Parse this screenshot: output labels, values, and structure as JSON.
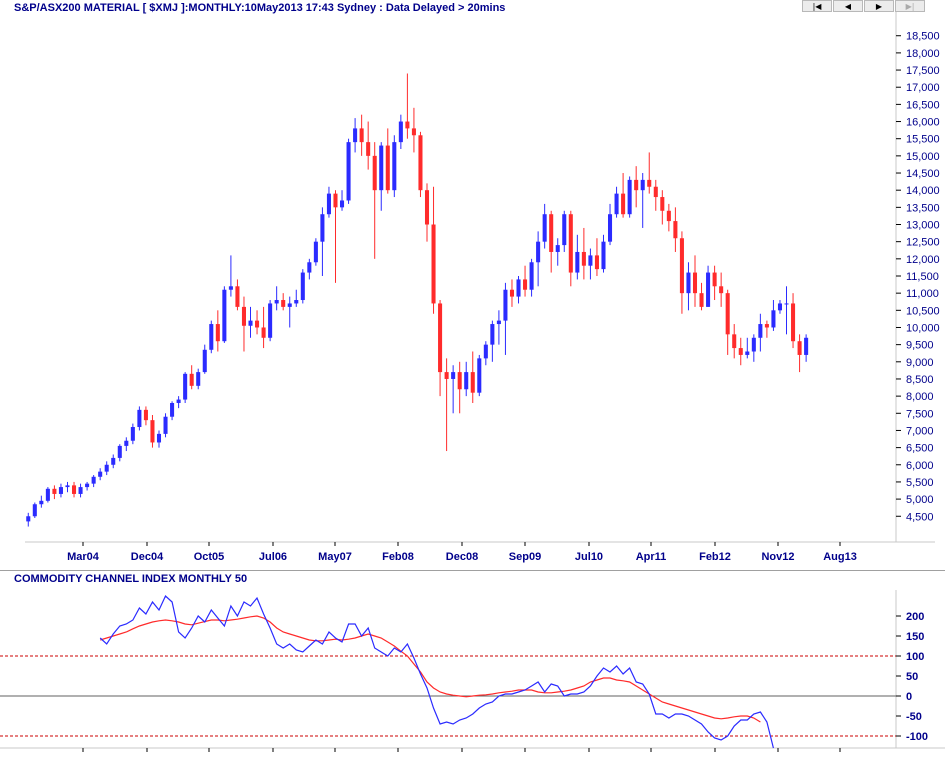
{
  "header": {
    "title": "S&P/ASX200 MATERIAL [ $XMJ ]:MONTHLY:10May2013 17:43 Sydney : Data Delayed > 20mins"
  },
  "nav": [
    {
      "name": "first-button",
      "icon": "skip-first-icon",
      "glyph": "|◀"
    },
    {
      "name": "previous-button",
      "icon": "step-back-icon",
      "glyph": "◀"
    },
    {
      "name": "next-button",
      "icon": "step-forward-icon",
      "glyph": "▶"
    },
    {
      "name": "last-button",
      "icon": "skip-last-icon",
      "glyph": "▶|"
    }
  ],
  "indicator": {
    "title": "COMMODITY CHANNEL INDEX MONTHLY 50"
  },
  "colors": {
    "up": "#2b2bff",
    "down": "#ff2b2b",
    "cci": "#2b2bff",
    "signal": "#ff2b2b",
    "text": "#00008b"
  },
  "chart_data": [
    {
      "type": "candlestick",
      "title": "S&P/ASX200 MATERIAL [ $XMJ ]:MONTHLY:10May2013 17:43 Sydney : Data Delayed > 20mins",
      "x_tick_labels": [
        "Mar04",
        "Dec04",
        "Oct05",
        "Jul06",
        "May07",
        "Feb08",
        "Dec08",
        "Sep09",
        "Jul10",
        "Apr11",
        "Feb12",
        "Nov12",
        "Aug13"
      ],
      "y_ticks": [
        4500,
        5000,
        5500,
        6000,
        6500,
        7000,
        7500,
        8000,
        8500,
        9000,
        9500,
        10000,
        10500,
        11000,
        11500,
        12000,
        12500,
        13000,
        13500,
        14000,
        14500,
        15000,
        15500,
        16000,
        16500,
        17000,
        17500,
        18000,
        18500
      ],
      "y_tick_labels": [
        "4,500",
        "5,000",
        "5,500",
        "6,000",
        "6,500",
        "7,000",
        "7,500",
        "8,000",
        "8,500",
        "9,000",
        "9,500",
        "10,000",
        "10,500",
        "11,000",
        "11,500",
        "12,000",
        "12,500",
        "13,000",
        "13,500",
        "14,000",
        "14,500",
        "15,000",
        "15,500",
        "16,000",
        "16,500",
        "17,000",
        "17,500",
        "18,000",
        "18,500"
      ],
      "ylim": [
        3750,
        18900
      ],
      "xlim": [
        0,
        123
      ],
      "candles": [
        [
          4350,
          4600,
          4200,
          4500
        ],
        [
          4500,
          4900,
          4450,
          4850
        ],
        [
          4850,
          5100,
          4750,
          4950
        ],
        [
          4950,
          5350,
          4900,
          5300
        ],
        [
          5300,
          5400,
          5000,
          5150
        ],
        [
          5150,
          5450,
          5050,
          5350
        ],
        [
          5350,
          5500,
          5200,
          5400
        ],
        [
          5400,
          5500,
          5050,
          5150
        ],
        [
          5150,
          5450,
          5050,
          5350
        ],
        [
          5350,
          5500,
          5250,
          5450
        ],
        [
          5450,
          5700,
          5350,
          5650
        ],
        [
          5650,
          5900,
          5550,
          5800
        ],
        [
          5800,
          6100,
          5700,
          6000
        ],
        [
          6000,
          6300,
          5900,
          6200
        ],
        [
          6200,
          6600,
          6100,
          6550
        ],
        [
          6550,
          6800,
          6400,
          6700
        ],
        [
          6700,
          7200,
          6600,
          7100
        ],
        [
          7100,
          7700,
          7000,
          7600
        ],
        [
          7600,
          7700,
          7150,
          7300
        ],
        [
          7300,
          7450,
          6500,
          6650
        ],
        [
          6650,
          7000,
          6500,
          6900
        ],
        [
          6900,
          7500,
          6800,
          7400
        ],
        [
          7400,
          7850,
          7300,
          7800
        ],
        [
          7800,
          8000,
          7650,
          7900
        ],
        [
          7900,
          8700,
          7800,
          8650
        ],
        [
          8650,
          8900,
          8200,
          8300
        ],
        [
          8300,
          8800,
          8200,
          8700
        ],
        [
          8700,
          9500,
          8650,
          9350
        ],
        [
          9350,
          10200,
          9250,
          10100
        ],
        [
          10100,
          10500,
          9300,
          9600
        ],
        [
          9600,
          11200,
          9550,
          11100
        ],
        [
          11100,
          12100,
          10900,
          11200
        ],
        [
          11200,
          11400,
          10500,
          10600
        ],
        [
          10600,
          10900,
          9300,
          10050
        ],
        [
          10050,
          10600,
          9700,
          10200
        ],
        [
          10200,
          10500,
          9800,
          10000
        ],
        [
          10000,
          10600,
          9400,
          9700
        ],
        [
          9700,
          10800,
          9600,
          10700
        ],
        [
          10700,
          11200,
          10500,
          10800
        ],
        [
          10800,
          11000,
          10500,
          10600
        ],
        [
          10600,
          10900,
          10000,
          10700
        ],
        [
          10700,
          11100,
          10600,
          10800
        ],
        [
          10800,
          11700,
          10700,
          11600
        ],
        [
          11600,
          12000,
          11400,
          11900
        ],
        [
          11900,
          12600,
          11800,
          12500
        ],
        [
          12500,
          13500,
          11500,
          13300
        ],
        [
          13300,
          14100,
          13200,
          13900
        ],
        [
          13900,
          14000,
          11300,
          13500
        ],
        [
          13500,
          14000,
          13400,
          13700
        ],
        [
          13700,
          15500,
          13600,
          15400
        ],
        [
          15400,
          16100,
          15100,
          15800
        ],
        [
          15800,
          16200,
          15000,
          15400
        ],
        [
          15400,
          16000,
          14600,
          15000
        ],
        [
          15000,
          15400,
          12000,
          14000
        ],
        [
          14000,
          15400,
          13400,
          15300
        ],
        [
          15300,
          15800,
          13900,
          14000
        ],
        [
          14000,
          15600,
          13800,
          15400
        ],
        [
          15400,
          16200,
          15200,
          16000
        ],
        [
          16000,
          17400,
          15500,
          15800
        ],
        [
          15800,
          16400,
          15100,
          15600
        ],
        [
          15600,
          15700,
          13800,
          14000
        ],
        [
          14000,
          14200,
          12500,
          13000
        ],
        [
          13000,
          14100,
          10400,
          10700
        ],
        [
          10700,
          10800,
          8000,
          8700
        ],
        [
          8700,
          9100,
          6400,
          8500
        ],
        [
          8500,
          8900,
          7500,
          8700
        ],
        [
          8700,
          9000,
          7500,
          8200
        ],
        [
          8200,
          9000,
          8000,
          8700
        ],
        [
          8700,
          9300,
          7800,
          8100
        ],
        [
          8100,
          9200,
          8000,
          9100
        ],
        [
          9100,
          9600,
          8900,
          9500
        ],
        [
          9500,
          10200,
          9000,
          10100
        ],
        [
          10100,
          10500,
          9500,
          10200
        ],
        [
          10200,
          11300,
          9200,
          11100
        ],
        [
          11100,
          11400,
          10600,
          10900
        ],
        [
          10900,
          11500,
          10700,
          11400
        ],
        [
          11400,
          11800,
          10900,
          11100
        ],
        [
          11100,
          12000,
          10900,
          11900
        ],
        [
          11900,
          12800,
          11200,
          12500
        ],
        [
          12500,
          13600,
          12300,
          13300
        ],
        [
          13300,
          13400,
          11600,
          12200
        ],
        [
          12200,
          12600,
          11800,
          12400
        ],
        [
          12400,
          13400,
          12200,
          13300
        ],
        [
          13300,
          13400,
          11200,
          11600
        ],
        [
          11600,
          12700,
          11400,
          12200
        ],
        [
          12200,
          12900,
          11400,
          11800
        ],
        [
          11800,
          12300,
          11400,
          12100
        ],
        [
          12100,
          12600,
          11500,
          11700
        ],
        [
          11700,
          12700,
          11600,
          12500
        ],
        [
          12500,
          13600,
          12400,
          13300
        ],
        [
          13300,
          14100,
          13200,
          13900
        ],
        [
          13900,
          14500,
          13200,
          13300
        ],
        [
          13300,
          14400,
          13200,
          14300
        ],
        [
          14300,
          14700,
          13500,
          14000
        ],
        [
          14000,
          14500,
          12900,
          14300
        ],
        [
          14300,
          15100,
          13900,
          14100
        ],
        [
          14100,
          14300,
          13400,
          13800
        ],
        [
          13800,
          14000,
          13000,
          13400
        ],
        [
          13400,
          13600,
          12800,
          13100
        ],
        [
          13100,
          13500,
          12200,
          12600
        ],
        [
          12600,
          12800,
          10400,
          11000
        ],
        [
          11000,
          11900,
          10500,
          11600
        ],
        [
          11600,
          12100,
          10600,
          11000
        ],
        [
          11000,
          11300,
          10500,
          10600
        ],
        [
          10600,
          11800,
          10600,
          11600
        ],
        [
          11600,
          11800,
          10800,
          11200
        ],
        [
          11200,
          11600,
          10600,
          11000
        ],
        [
          11000,
          11100,
          9200,
          9800
        ],
        [
          9800,
          10100,
          9100,
          9400
        ],
        [
          9400,
          9700,
          8900,
          9200
        ],
        [
          9200,
          9700,
          9100,
          9300
        ],
        [
          9300,
          9800,
          9000,
          9700
        ],
        [
          9700,
          10400,
          9300,
          10100
        ],
        [
          10100,
          10200,
          9700,
          10000
        ],
        [
          10000,
          10800,
          9900,
          10500
        ],
        [
          10500,
          10800,
          10400,
          10700
        ],
        [
          10700,
          11200,
          9800,
          10700
        ],
        [
          10700,
          11000,
          9400,
          9600
        ],
        [
          9600,
          9800,
          8700,
          9200
        ],
        [
          9200,
          9800,
          9000,
          9700
        ]
      ]
    },
    {
      "type": "line",
      "title": "COMMODITY CHANNEL INDEX MONTHLY 50",
      "y_ticks": [
        -100,
        -50,
        0,
        50,
        100,
        150,
        200
      ],
      "y_tick_labels": [
        "-100",
        "-50",
        "0",
        "50",
        "100",
        "150",
        "200"
      ],
      "ylim": [
        -130,
        240
      ],
      "reference_lines": [
        100,
        0,
        -100
      ],
      "xlim": [
        0,
        123
      ],
      "x_start": 11,
      "series": [
        {
          "values": [
            145,
            130,
            155,
            175,
            180,
            190,
            220,
            205,
            235,
            215,
            250,
            235,
            160,
            145,
            170,
            200,
            185,
            215,
            195,
            175,
            225,
            200,
            235,
            225,
            245,
            205,
            170,
            130,
            120,
            130,
            115,
            110,
            125,
            140,
            130,
            160,
            145,
            135,
            180,
            180,
            150,
            170,
            120,
            110,
            100,
            120,
            110,
            130,
            95,
            55,
            20,
            -30,
            -70,
            -65,
            -70,
            -60,
            -55,
            -45,
            -30,
            -20,
            -15,
            0,
            5,
            5,
            10,
            15,
            25,
            35,
            10,
            30,
            25,
            0,
            5,
            5,
            10,
            25,
            50,
            70,
            60,
            75,
            55,
            70,
            35,
            30,
            5,
            -45,
            -45,
            -55,
            -45,
            -45,
            -50,
            -60,
            -70,
            -90,
            -105,
            -110,
            -100,
            -75,
            -60,
            -60,
            -45,
            -40,
            -65,
            -130
          ]
        },
        {
          "values": [
            140,
            145,
            150,
            155,
            160,
            168,
            175,
            180,
            185,
            188,
            190,
            188,
            185,
            180,
            178,
            182,
            186,
            190,
            190,
            188,
            190,
            192,
            195,
            198,
            200,
            195,
            185,
            170,
            160,
            155,
            150,
            145,
            140,
            138,
            138,
            140,
            142,
            140,
            142,
            145,
            150,
            155,
            150,
            145,
            135,
            125,
            112,
            100,
            80,
            60,
            35,
            20,
            10,
            5,
            2,
            0,
            -2,
            0,
            2,
            3,
            5,
            8,
            10,
            12,
            15,
            15,
            15,
            10,
            8,
            8,
            10,
            12,
            15,
            20,
            25,
            35,
            40,
            45,
            45,
            40,
            38,
            35,
            25,
            15,
            5,
            -5,
            -15,
            -20,
            -25,
            -30,
            -35,
            -40,
            -45,
            -50,
            -55,
            -57,
            -55,
            -52,
            -50,
            -50,
            -55,
            -65
          ]
        }
      ]
    }
  ]
}
